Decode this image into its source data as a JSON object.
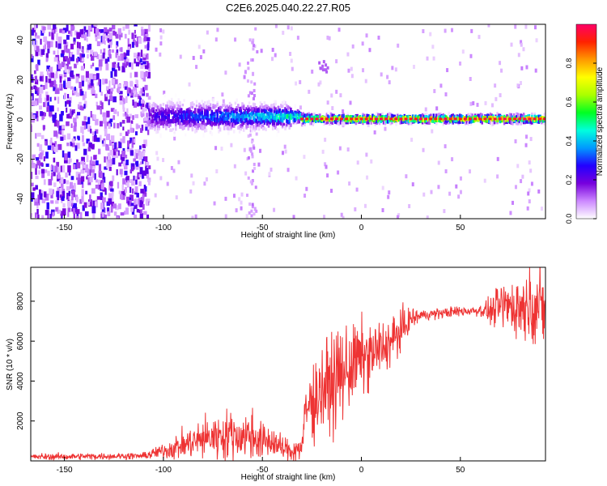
{
  "title": "C2E6.2025.040.22.27.R05",
  "chart_data": [
    {
      "type": "heatmap",
      "xlabel": "Height of straight line (km)",
      "ylabel": "Frequency (Hz)",
      "xlim": [
        -167,
        93
      ],
      "ylim": [
        -50,
        48
      ],
      "xticks": [
        -150,
        -100,
        -50,
        0,
        50
      ],
      "yticks": [
        -40,
        -20,
        0,
        20,
        40
      ],
      "colorbar": {
        "label": "Normalized spectral amplitude",
        "range": [
          0,
          1
        ],
        "ticks": [
          0.0,
          0.2,
          0.4,
          0.6,
          0.8
        ],
        "colors": [
          "#ffffff",
          "#cc88ff",
          "#7700dd",
          "#2200ff",
          "#0099ff",
          "#00ffdd",
          "#00ff22",
          "#aaff00",
          "#ffff00",
          "#ff9900",
          "#ff2200",
          "#ff0066"
        ]
      },
      "grid": false,
      "description_free": true
    },
    {
      "type": "line",
      "xlabel": "Height of straight line (km)",
      "ylabel": "SNR (10 * v/v)",
      "xlim": [
        -167,
        93
      ],
      "ylim": [
        0,
        9700
      ],
      "xticks": [
        -150,
        -100,
        -50,
        0,
        50
      ],
      "yticks": [
        2000,
        4000,
        6000,
        8000
      ],
      "color": "#ee3333",
      "grid": false,
      "trend": {
        "x": [
          -167,
          -110,
          -100,
          -90,
          -80,
          -70,
          -60,
          -55,
          -50,
          -45,
          -40,
          -35,
          -30,
          -28,
          -25,
          -20,
          -15,
          -10,
          -5,
          0,
          5,
          10,
          15,
          20,
          25,
          30,
          40,
          50,
          60,
          65,
          70,
          75,
          80,
          85,
          90,
          93
        ],
        "y": [
          200,
          250,
          500,
          800,
          1100,
          1300,
          1250,
          1300,
          900,
          1000,
          600,
          500,
          700,
          2500,
          3000,
          3600,
          3900,
          4300,
          4800,
          5100,
          5300,
          5600,
          6000,
          6500,
          7100,
          7300,
          7400,
          7500,
          7550,
          7500,
          7700,
          7800,
          7700,
          7900,
          7700,
          7600
        ]
      },
      "spread": {
        "x": [
          -167,
          -110,
          -100,
          -90,
          -80,
          -70,
          -60,
          -50,
          -40,
          -30,
          -28,
          -20,
          -10,
          0,
          10,
          20,
          25,
          30,
          60,
          65,
          70,
          80,
          90,
          93
        ],
        "y": [
          80,
          80,
          200,
          350,
          500,
          600,
          650,
          500,
          300,
          300,
          900,
          1100,
          1200,
          900,
          700,
          500,
          300,
          130,
          140,
          300,
          600,
          800,
          900,
          900
        ]
      }
    }
  ]
}
